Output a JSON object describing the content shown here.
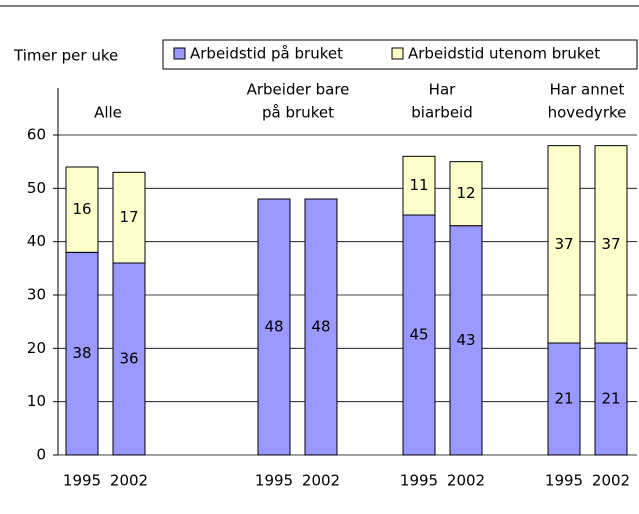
{
  "chart_data": {
    "type": "stacked-bar",
    "y_label": "Timer per uke",
    "groups": [
      [
        "Alle"
      ],
      [
        "Arbeider bare",
        "på bruket"
      ],
      [
        "Har",
        "biarbeid"
      ],
      [
        "Har annet",
        "hovedyrke"
      ]
    ],
    "categories": [
      "1995",
      "2002",
      "1995",
      "2002",
      "1995",
      "2002",
      "1995",
      "2002"
    ],
    "series": [
      {
        "name": "Arbeidstid på bruket",
        "color": "#9999ff",
        "values": [
          38,
          36,
          48,
          48,
          45,
          43,
          21,
          21
        ]
      },
      {
        "name": "Arbeidstid utenom bruket",
        "color": "#ffffcc",
        "values": [
          16,
          17,
          null,
          null,
          11,
          12,
          37,
          37
        ]
      }
    ],
    "ylim": [
      0,
      60
    ],
    "yticks": [
      0,
      10,
      20,
      30,
      40,
      50,
      60
    ],
    "grid": true
  }
}
